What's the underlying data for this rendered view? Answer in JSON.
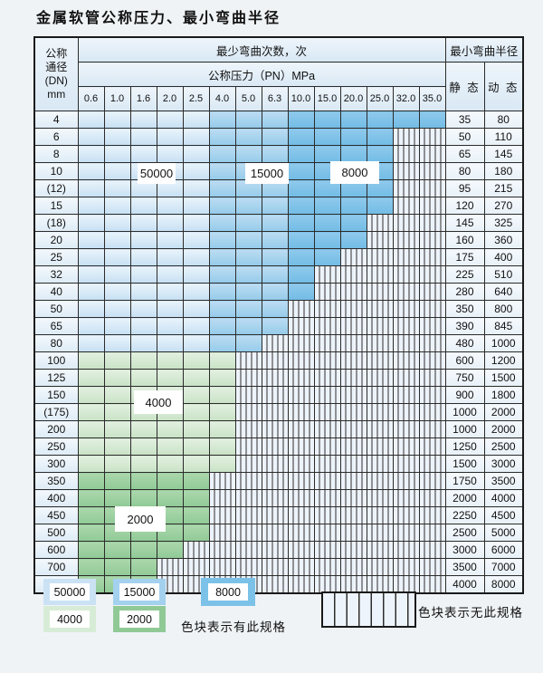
{
  "title": "金属软管公称压力、最小弯曲半径",
  "table": {
    "header": {
      "dn_lines": [
        "公称",
        "通径",
        "(DN)",
        "mm"
      ],
      "bend_cycles": "最少弯曲次数，次",
      "pressure": "公称压力（PN）MPa",
      "pressure_columns": [
        "0.6",
        "1.0",
        "1.6",
        "2.0",
        "2.5",
        "4.0",
        "5.0",
        "6.3",
        "10.0",
        "15.0",
        "20.0",
        "25.0",
        "32.0",
        "35.0"
      ],
      "min_bend_radius": "最小弯曲半径",
      "static_label": "静 态",
      "dynamic_label": "动 态"
    },
    "rows": [
      {
        "dn": "4",
        "group": "blue",
        "spec_count": 14,
        "static": "35",
        "dynamic": "80"
      },
      {
        "dn": "6",
        "group": "blue",
        "spec_count": 12,
        "static": "50",
        "dynamic": "110"
      },
      {
        "dn": "8",
        "group": "blue",
        "spec_count": 12,
        "static": "65",
        "dynamic": "145"
      },
      {
        "dn": "10",
        "group": "blue",
        "spec_count": 12,
        "static": "80",
        "dynamic": "180"
      },
      {
        "dn": "(12)",
        "group": "blue",
        "spec_count": 12,
        "static": "95",
        "dynamic": "215"
      },
      {
        "dn": "15",
        "group": "blue",
        "spec_count": 12,
        "static": "120",
        "dynamic": "270"
      },
      {
        "dn": "(18)",
        "group": "blue",
        "spec_count": 11,
        "static": "145",
        "dynamic": "325"
      },
      {
        "dn": "20",
        "group": "blue",
        "spec_count": 11,
        "static": "160",
        "dynamic": "360"
      },
      {
        "dn": "25",
        "group": "blue",
        "spec_count": 10,
        "static": "175",
        "dynamic": "400"
      },
      {
        "dn": "32",
        "group": "blue",
        "spec_count": 9,
        "static": "225",
        "dynamic": "510"
      },
      {
        "dn": "40",
        "group": "blue",
        "spec_count": 9,
        "static": "280",
        "dynamic": "640"
      },
      {
        "dn": "50",
        "group": "blue",
        "spec_count": 8,
        "static": "350",
        "dynamic": "800"
      },
      {
        "dn": "65",
        "group": "blue",
        "spec_count": 8,
        "static": "390",
        "dynamic": "845"
      },
      {
        "dn": "80",
        "group": "blue",
        "spec_count": 7,
        "static": "480",
        "dynamic": "1000"
      },
      {
        "dn": "100",
        "group": "4000",
        "spec_count": 6,
        "static": "600",
        "dynamic": "1200"
      },
      {
        "dn": "125",
        "group": "4000",
        "spec_count": 6,
        "static": "750",
        "dynamic": "1500"
      },
      {
        "dn": "150",
        "group": "4000",
        "spec_count": 6,
        "static": "900",
        "dynamic": "1800"
      },
      {
        "dn": "(175)",
        "group": "4000",
        "spec_count": 6,
        "static": "1000",
        "dynamic": "2000"
      },
      {
        "dn": "200",
        "group": "4000",
        "spec_count": 6,
        "static": "1000",
        "dynamic": "2000"
      },
      {
        "dn": "250",
        "group": "4000",
        "spec_count": 6,
        "static": "1250",
        "dynamic": "2500"
      },
      {
        "dn": "300",
        "group": "4000",
        "spec_count": 6,
        "static": "1500",
        "dynamic": "3000"
      },
      {
        "dn": "350",
        "group": "2000",
        "spec_count": 5,
        "static": "1750",
        "dynamic": "3500"
      },
      {
        "dn": "400",
        "group": "2000",
        "spec_count": 5,
        "static": "2000",
        "dynamic": "4000"
      },
      {
        "dn": "450",
        "group": "2000",
        "spec_count": 5,
        "static": "2250",
        "dynamic": "4500"
      },
      {
        "dn": "500",
        "group": "2000",
        "spec_count": 5,
        "static": "2500",
        "dynamic": "5000"
      },
      {
        "dn": "600",
        "group": "2000",
        "spec_count": 4,
        "static": "3000",
        "dynamic": "6000"
      },
      {
        "dn": "700",
        "group": "2000",
        "spec_count": 3,
        "static": "3500",
        "dynamic": "7000"
      },
      {
        "dn": "800",
        "group": "2000",
        "spec_count": 3,
        "static": "4000",
        "dynamic": "8000"
      }
    ],
    "blue_zone_split": {
      "z50000_cols": "0.6-2.5",
      "z15000_cols": "4.0-6.3",
      "z8000_cols": "10.0-35.0"
    }
  },
  "zone_labels": {
    "z50000": "50000",
    "z15000": "15000",
    "z8000": "8000",
    "z4000": "4000",
    "z2000": "2000"
  },
  "zone_colors": {
    "z50000": "#c6e0f3",
    "z15000": "#a3d1ee",
    "z8000": "#7cc2e8",
    "z4000": "#d7ecd6",
    "z2000": "#90c996"
  },
  "legend": {
    "sw50000": "50000",
    "sw15000": "15000",
    "sw8000": "8000",
    "sw4000": "4000",
    "sw2000": "2000",
    "has_spec": "色块表示有此规格",
    "no_spec": "色块表示无此规格"
  }
}
